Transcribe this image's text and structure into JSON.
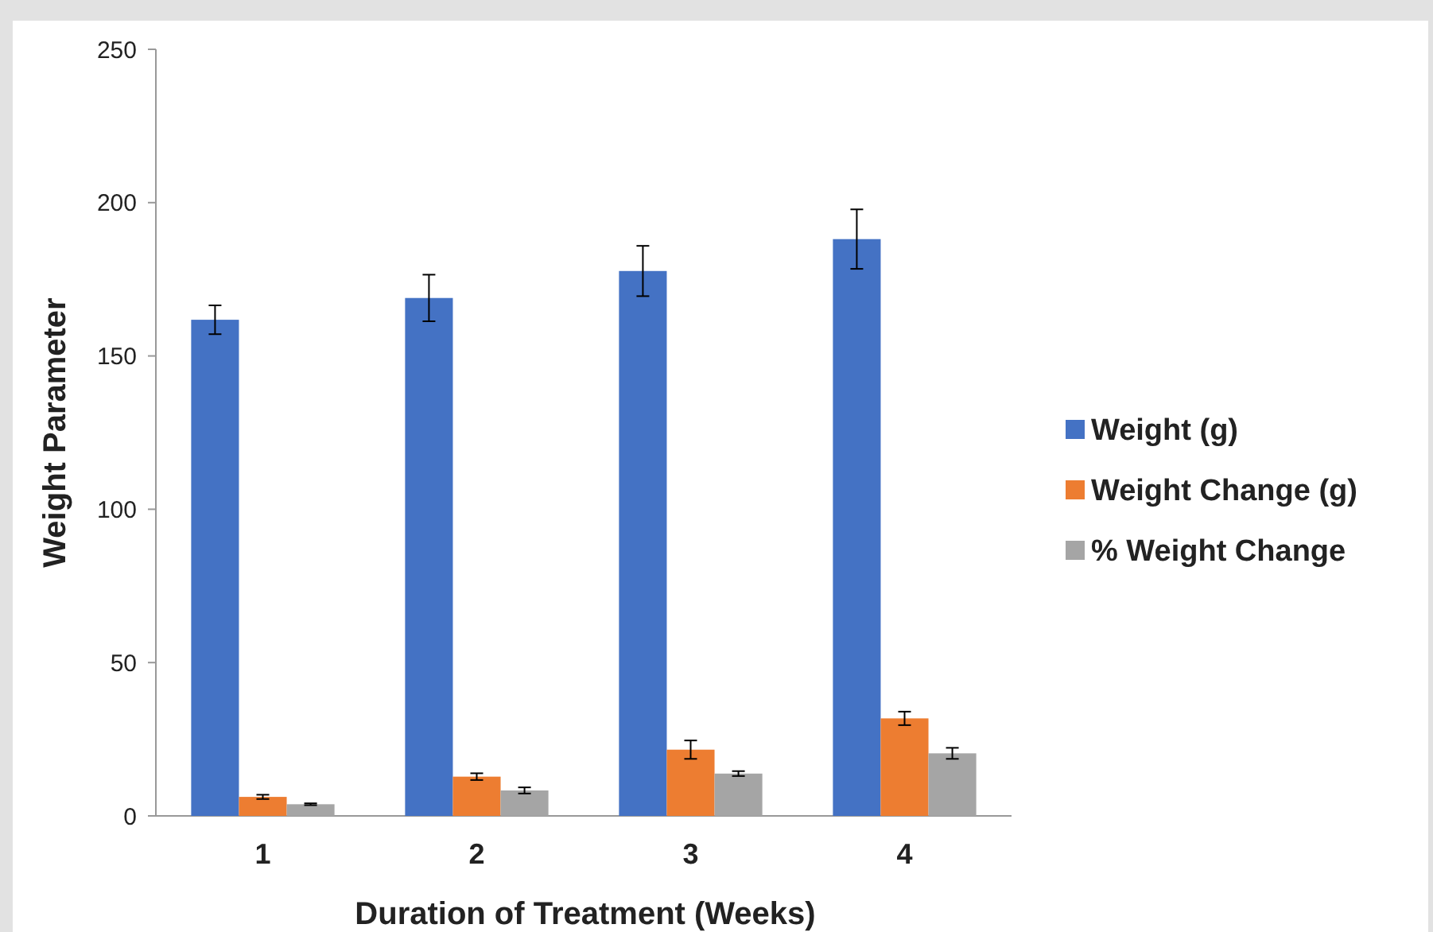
{
  "chart_data": {
    "type": "bar",
    "xlabel": "Duration of Treatment (Weeks)",
    "ylabel": "Weight Parameter",
    "categories": [
      "1",
      "2",
      "3",
      "4"
    ],
    "series": [
      {
        "name": "Weight (g)",
        "color": "#4472c4",
        "values": [
          161.8,
          168.9,
          177.7,
          188.1
        ],
        "errors": [
          4.7,
          7.6,
          8.2,
          9.7
        ]
      },
      {
        "name": "Weight Change (g)",
        "color": "#ed7d31",
        "values": [
          6.2,
          12.8,
          21.6,
          31.8
        ],
        "errors": [
          0.7,
          1.1,
          3,
          2.2
        ]
      },
      {
        "name": "% Weight Change",
        "color": "#a5a5a5",
        "values": [
          3.8,
          8.3,
          13.8,
          20.4
        ],
        "errors": [
          0.3,
          1,
          0.8,
          1.8
        ]
      }
    ],
    "ylim": [
      0,
      250
    ],
    "yticks": [
      0,
      50,
      100,
      150,
      200,
      250
    ],
    "legend": "right"
  }
}
